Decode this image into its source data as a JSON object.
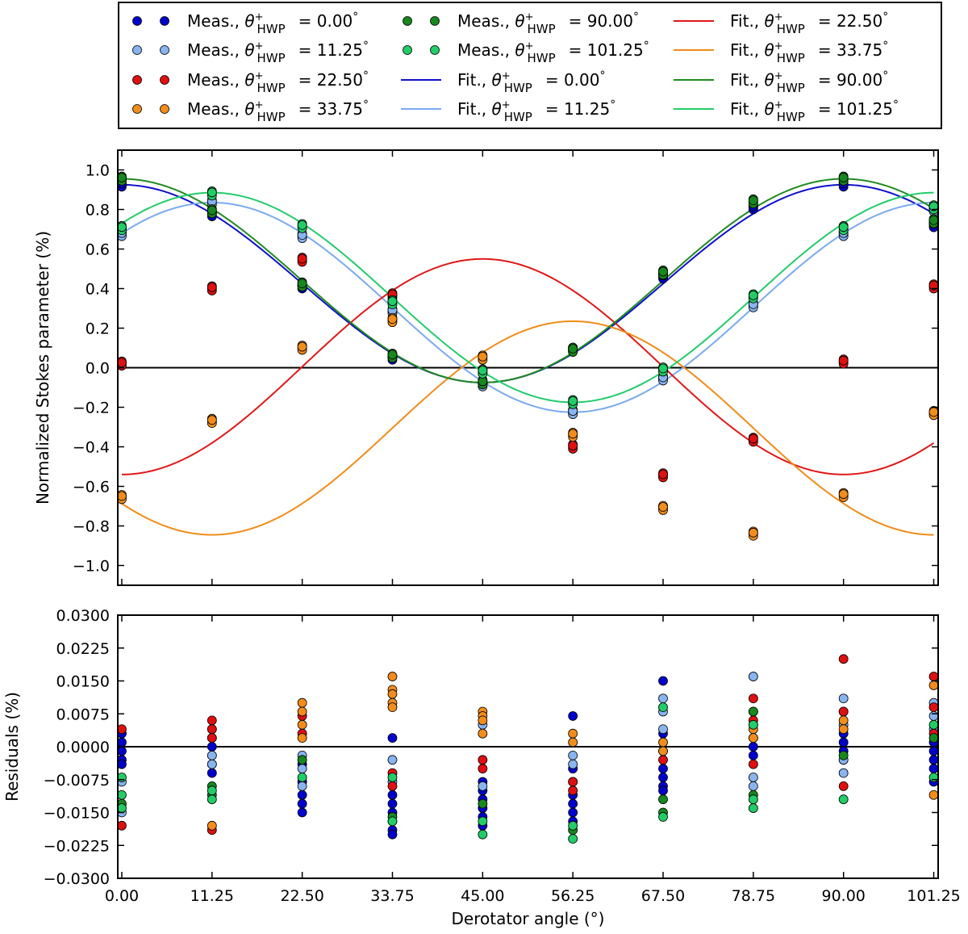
{
  "chart_data": [
    {
      "type": "line",
      "panel": "top",
      "ylabel": "Normalized Stokes parameter (%)",
      "xlim": [
        -0.5,
        101.8
      ],
      "ylim": [
        -1.1,
        1.1
      ],
      "x_ticks": [
        0.0,
        11.25,
        22.5,
        33.75,
        45.0,
        56.25,
        67.5,
        78.75,
        90.0,
        101.25
      ],
      "y_ticks": [
        1.0,
        0.8,
        0.6,
        0.4,
        0.2,
        0.0,
        -0.2,
        -0.4,
        -0.6,
        -0.8,
        -1.0
      ],
      "y_tick_labels": [
        "1.0",
        "0.8",
        "0.6",
        "0.4",
        "0.2",
        "0.0",
        "−0.2",
        "−0.4",
        "−0.6",
        "−0.8",
        "−1.0"
      ],
      "zero_line": true,
      "x": [
        0.0,
        11.25,
        22.5,
        33.75,
        45.0,
        56.25,
        67.5,
        78.75,
        90.0,
        101.25
      ],
      "series": [
        {
          "name": "HWP 0.00",
          "color": "#0000cc",
          "line_color": "#1010cc",
          "fit": {
            "mean": 0.425,
            "amp": 0.5,
            "phase_deg": 0.0
          },
          "values": [
            0.925,
            0.775,
            0.41,
            0.05,
            -0.08,
            0.09,
            0.46,
            0.81,
            0.925,
            0.72
          ]
        },
        {
          "name": "HWP 11.25",
          "color": "#88b4f0",
          "line_color": "#7aaaf0",
          "fit": {
            "mean": 0.305,
            "amp": 0.53,
            "phase_deg": 22.5
          },
          "values": [
            0.675,
            0.835,
            0.665,
            0.285,
            -0.085,
            -0.225,
            -0.055,
            0.315,
            0.675,
            0.8
          ]
        },
        {
          "name": "HWP 22.50",
          "color": "#e01010",
          "line_color": "#e01818",
          "fit": {
            "mean": 0.005,
            "amp": 0.545,
            "phase_deg": 90.0
          },
          "values": [
            0.02,
            0.4,
            0.545,
            0.365,
            -0.02,
            -0.4,
            -0.545,
            -0.365,
            0.03,
            0.41
          ]
        },
        {
          "name": "HWP 33.75",
          "color": "#f28c1a",
          "line_color": "#f08c18",
          "fit": {
            "mean": -0.305,
            "amp": 0.54,
            "phase_deg": 112.5
          },
          "values": [
            -0.655,
            -0.27,
            0.1,
            0.24,
            0.05,
            -0.34,
            -0.71,
            -0.84,
            -0.645,
            -0.23
          ]
        },
        {
          "name": "HWP 90.00",
          "color": "#16881e",
          "line_color": "#1f8c1f",
          "fit": {
            "mean": 0.44,
            "amp": 0.515,
            "phase_deg": 0.0
          },
          "values": [
            0.955,
            0.79,
            0.42,
            0.06,
            -0.075,
            0.09,
            0.48,
            0.84,
            0.955,
            0.74
          ]
        },
        {
          "name": "HWP 101.25",
          "color": "#22cc66",
          "line_color": "#22cc6a",
          "fit": {
            "mean": 0.355,
            "amp": 0.53,
            "phase_deg": 22.5
          },
          "values": [
            0.705,
            0.88,
            0.715,
            0.33,
            -0.02,
            -0.175,
            -0.01,
            0.36,
            0.705,
            0.81
          ]
        }
      ]
    },
    {
      "type": "scatter",
      "panel": "bottom",
      "xlabel": "Derotator angle (°)",
      "ylabel": "Residuals (%)",
      "xlim": [
        -0.5,
        101.8
      ],
      "ylim": [
        -0.03,
        0.03
      ],
      "x_ticks": [
        0.0,
        11.25,
        22.5,
        33.75,
        45.0,
        56.25,
        67.5,
        78.75,
        90.0,
        101.25
      ],
      "x_tick_labels": [
        "0.00",
        "11.25",
        "22.50",
        "33.75",
        "45.00",
        "56.25",
        "67.50",
        "78.75",
        "90.00",
        "101.25"
      ],
      "y_ticks": [
        0.03,
        0.0225,
        0.015,
        0.0075,
        0.0,
        -0.0075,
        -0.015,
        -0.0225,
        -0.03
      ],
      "y_tick_labels": [
        "0.0300",
        "0.0225",
        "0.0150",
        "0.0075",
        "0.0000",
        "−0.0075",
        "−0.0150",
        "−0.0225",
        "−0.0300"
      ],
      "zero_line": true,
      "series": [
        {
          "name": "HWP 0.00",
          "color": "#0000cc",
          "points": [
            [
              0,
              0.003
            ],
            [
              0,
              0.001
            ],
            [
              0,
              -0.001
            ],
            [
              0,
              -0.003
            ],
            [
              0,
              -0.004
            ],
            [
              11.25,
              0.002
            ],
            [
              11.25,
              0.0
            ],
            [
              11.25,
              -0.002
            ],
            [
              11.25,
              -0.004
            ],
            [
              11.25,
              -0.006
            ],
            [
              22.5,
              -0.004
            ],
            [
              22.5,
              -0.008
            ],
            [
              22.5,
              -0.011
            ],
            [
              22.5,
              -0.013
            ],
            [
              22.5,
              -0.015
            ],
            [
              33.75,
              0.002
            ],
            [
              33.75,
              -0.011
            ],
            [
              33.75,
              -0.013
            ],
            [
              33.75,
              -0.015
            ],
            [
              33.75,
              -0.017
            ],
            [
              33.75,
              -0.019
            ],
            [
              33.75,
              -0.02
            ],
            [
              45,
              -0.008
            ],
            [
              45,
              -0.01
            ],
            [
              45,
              -0.012
            ],
            [
              45,
              -0.014
            ],
            [
              45,
              -0.016
            ],
            [
              45,
              -0.018
            ],
            [
              56.25,
              0.007
            ],
            [
              56.25,
              -0.005
            ],
            [
              56.25,
              -0.008
            ],
            [
              56.25,
              -0.011
            ],
            [
              56.25,
              -0.013
            ],
            [
              56.25,
              -0.015
            ],
            [
              56.25,
              -0.017
            ],
            [
              67.5,
              0.015
            ],
            [
              67.5,
              0.003
            ],
            [
              67.5,
              -0.005
            ],
            [
              67.5,
              -0.007
            ],
            [
              67.5,
              -0.009
            ],
            [
              67.5,
              -0.01
            ],
            [
              78.75,
              0.008
            ],
            [
              78.75,
              0.005
            ],
            [
              78.75,
              0.002
            ],
            [
              78.75,
              0.0
            ],
            [
              78.75,
              -0.002
            ],
            [
              90,
              0.003
            ],
            [
              90,
              0.001
            ],
            [
              90,
              -0.001
            ],
            [
              90,
              -0.003
            ],
            [
              101.25,
              0.001
            ],
            [
              101.25,
              -0.001
            ],
            [
              101.25,
              -0.003
            ],
            [
              101.25,
              -0.005
            ],
            [
              101.25,
              -0.008
            ]
          ]
        },
        {
          "name": "HWP 11.25",
          "color": "#88b4f0",
          "points": [
            [
              0,
              -0.008
            ],
            [
              0,
              -0.015
            ],
            [
              11.25,
              0.004
            ],
            [
              11.25,
              -0.002
            ],
            [
              11.25,
              -0.004
            ],
            [
              22.5,
              -0.002
            ],
            [
              22.5,
              -0.005
            ],
            [
              22.5,
              -0.009
            ],
            [
              33.75,
              -0.003
            ],
            [
              33.75,
              -0.008
            ],
            [
              45,
              0.005
            ],
            [
              45,
              -0.009
            ],
            [
              56.25,
              -0.002
            ],
            [
              56.25,
              -0.004
            ],
            [
              67.5,
              0.011
            ],
            [
              67.5,
              0.008
            ],
            [
              67.5,
              0.004
            ],
            [
              78.75,
              0.016
            ],
            [
              78.75,
              -0.007
            ],
            [
              78.75,
              -0.009
            ],
            [
              90,
              0.011
            ],
            [
              90,
              0.008
            ],
            [
              90,
              0.005
            ],
            [
              90,
              -0.003
            ],
            [
              90,
              -0.006
            ],
            [
              101.25,
              0.01
            ],
            [
              101.25,
              0.007
            ],
            [
              101.25,
              0.004
            ]
          ]
        },
        {
          "name": "HWP 22.50",
          "color": "#e01010",
          "points": [
            [
              0,
              0.004
            ],
            [
              0,
              -0.018
            ],
            [
              11.25,
              0.006
            ],
            [
              11.25,
              0.004
            ],
            [
              11.25,
              0.002
            ],
            [
              11.25,
              -0.019
            ],
            [
              22.5,
              0.007
            ],
            [
              22.5,
              0.003
            ],
            [
              33.75,
              -0.006
            ],
            [
              33.75,
              -0.009
            ],
            [
              45,
              -0.003
            ],
            [
              45,
              -0.005
            ],
            [
              56.25,
              -0.008
            ],
            [
              56.25,
              -0.01
            ],
            [
              67.5,
              -0.001
            ],
            [
              67.5,
              -0.003
            ],
            [
              78.75,
              0.011
            ],
            [
              78.75,
              0.006
            ],
            [
              78.75,
              -0.004
            ],
            [
              90,
              0.02
            ],
            [
              90,
              0.008
            ],
            [
              90,
              -0.009
            ],
            [
              101.25,
              0.016
            ],
            [
              101.25,
              0.009
            ],
            [
              101.25,
              0.003
            ]
          ]
        },
        {
          "name": "HWP 33.75",
          "color": "#f28c1a",
          "points": [
            [
              11.25,
              -0.018
            ],
            [
              22.5,
              0.01
            ],
            [
              22.5,
              0.008
            ],
            [
              22.5,
              0.005
            ],
            [
              22.5,
              0.002
            ],
            [
              33.75,
              0.016
            ],
            [
              33.75,
              0.013
            ],
            [
              33.75,
              0.012
            ],
            [
              33.75,
              0.01
            ],
            [
              33.75,
              0.009
            ],
            [
              45,
              0.008
            ],
            [
              45,
              0.007
            ],
            [
              45,
              0.006
            ],
            [
              45,
              0.003
            ],
            [
              56.25,
              0.003
            ],
            [
              56.25,
              0.001
            ],
            [
              67.5,
              0.001
            ],
            [
              67.5,
              -0.001
            ],
            [
              78.75,
              0.004
            ],
            [
              78.75,
              0.002
            ],
            [
              90,
              0.006
            ],
            [
              90,
              0.004
            ],
            [
              101.25,
              0.014
            ],
            [
              101.25,
              -0.011
            ]
          ]
        },
        {
          "name": "HWP 90.00",
          "color": "#16881e",
          "points": [
            [
              0,
              -0.013
            ],
            [
              11.25,
              -0.009
            ],
            [
              11.25,
              -0.011
            ],
            [
              22.5,
              -0.003
            ],
            [
              33.75,
              -0.016
            ],
            [
              45,
              -0.013
            ],
            [
              56.25,
              -0.019
            ],
            [
              67.5,
              -0.012
            ],
            [
              67.5,
              -0.015
            ],
            [
              78.75,
              0.008
            ],
            [
              78.75,
              -0.011
            ],
            [
              90,
              -0.002
            ],
            [
              101.25,
              0.002
            ]
          ]
        },
        {
          "name": "HWP 101.25",
          "color": "#22cc66",
          "points": [
            [
              0,
              -0.007
            ],
            [
              0,
              -0.011
            ],
            [
              0,
              -0.014
            ],
            [
              11.25,
              -0.01
            ],
            [
              11.25,
              -0.012
            ],
            [
              22.5,
              -0.007
            ],
            [
              33.75,
              -0.007
            ],
            [
              33.75,
              -0.017
            ],
            [
              45,
              -0.02
            ],
            [
              45,
              -0.017
            ],
            [
              56.25,
              -0.021
            ],
            [
              56.25,
              -0.018
            ],
            [
              67.5,
              0.009
            ],
            [
              67.5,
              -0.016
            ],
            [
              78.75,
              0.005
            ],
            [
              78.75,
              -0.012
            ],
            [
              78.75,
              -0.014
            ],
            [
              90,
              -0.012
            ],
            [
              101.25,
              0.005
            ],
            [
              101.25,
              -0.007
            ]
          ]
        }
      ]
    }
  ],
  "legend": {
    "prefix_meas": "Meas.,",
    "prefix_fit": "Fit.,",
    "symbol": "θ",
    "superscript": "+",
    "subscript": "HWP",
    "entries": [
      {
        "kind": "meas",
        "value": "= 0.00",
        "color": "#0000cc"
      },
      {
        "kind": "meas",
        "value": "= 11.25",
        "color": "#88b4f0"
      },
      {
        "kind": "meas",
        "value": "= 22.50",
        "color": "#e01010"
      },
      {
        "kind": "meas",
        "value": "= 33.75",
        "color": "#f28c1a"
      },
      {
        "kind": "meas",
        "value": "= 90.00",
        "color": "#16881e"
      },
      {
        "kind": "meas",
        "value": "= 101.25",
        "color": "#22cc66"
      },
      {
        "kind": "fit",
        "value": "= 0.00",
        "color": "#1010cc"
      },
      {
        "kind": "fit",
        "value": "= 11.25",
        "color": "#7aaaf0"
      },
      {
        "kind": "fit",
        "value": "= 22.50",
        "color": "#e01818"
      },
      {
        "kind": "fit",
        "value": "= 33.75",
        "color": "#f08c18"
      },
      {
        "kind": "fit",
        "value": "= 90.00",
        "color": "#1f8c1f"
      },
      {
        "kind": "fit",
        "value": "= 101.25",
        "color": "#22cc6a"
      }
    ],
    "degree": "°"
  }
}
